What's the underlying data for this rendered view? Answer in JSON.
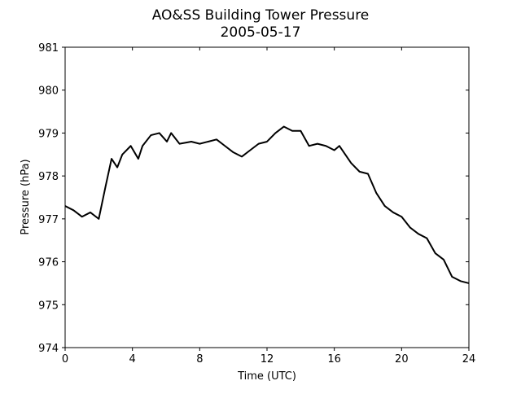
{
  "chart_data": {
    "type": "line",
    "title": "AO&SS Building Tower Pressure",
    "subtitle": "2005-05-17",
    "x_label": "Time (UTC)",
    "y_label": "Pressure (hPa)",
    "x": [
      0,
      0.5,
      1,
      1.5,
      2,
      2.4,
      2.76,
      3.1,
      3.4,
      3.9,
      4.35,
      4.6,
      5.1,
      5.6,
      6.05,
      6.3,
      6.8,
      7.5,
      8,
      8.5,
      9,
      9.5,
      10,
      10.5,
      11,
      11.5,
      12,
      12.5,
      13,
      13.5,
      14,
      14.5,
      15,
      15.5,
      16,
      16.3,
      17,
      17.5,
      18,
      18.5,
      19,
      19.5,
      20,
      20.5,
      21,
      21.5,
      22,
      22.5,
      23,
      23.5,
      24
    ],
    "series": [
      {
        "name": "Pressure",
        "color": "#000000",
        "values": [
          977.3,
          977.2,
          977.05,
          977.15,
          977.0,
          977.75,
          978.4,
          978.2,
          978.5,
          978.7,
          978.4,
          978.7,
          978.95,
          979.0,
          978.8,
          979.0,
          978.75,
          978.8,
          978.75,
          978.8,
          978.85,
          978.7,
          978.55,
          978.45,
          978.6,
          978.75,
          978.8,
          979.0,
          979.15,
          979.05,
          979.05,
          978.7,
          978.75,
          978.7,
          978.6,
          978.7,
          978.3,
          978.1,
          978.05,
          977.6,
          977.3,
          977.15,
          977.05,
          976.8,
          976.65,
          976.55,
          976.2,
          976.05,
          975.65,
          975.55,
          975.5
        ]
      }
    ],
    "xlim": [
      0,
      24
    ],
    "xticks": [
      0,
      4,
      8,
      12,
      16,
      20,
      24
    ],
    "ylim": [
      974,
      981
    ],
    "yticks": [
      974,
      975,
      976,
      977,
      978,
      979,
      980,
      981
    ]
  }
}
